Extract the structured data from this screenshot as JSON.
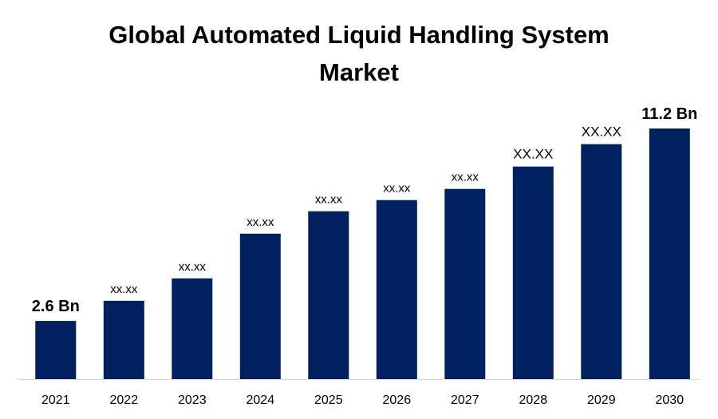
{
  "chart_data": {
    "type": "bar",
    "title_line1": "Global Automated Liquid Handling System",
    "title_line2": "Market",
    "categories": [
      "2021",
      "2022",
      "2023",
      "2024",
      "2025",
      "2026",
      "2027",
      "2028",
      "2029",
      "2030"
    ],
    "values": [
      2.6,
      3.5,
      4.5,
      6.5,
      7.5,
      8.0,
      8.5,
      9.5,
      10.5,
      11.2
    ],
    "data_labels": [
      "2.6 Bn",
      "xx.xx",
      "xx.xx",
      "xx.xx",
      "xx.xx",
      "xx.xx",
      "xx.xx",
      "XX.XX",
      "XX.XX",
      "11.2 Bn"
    ],
    "ylim": [
      0,
      11.2
    ],
    "bar_color": "#002060",
    "axis_color": "#d9d9d9",
    "grid": false,
    "legend": "none"
  }
}
